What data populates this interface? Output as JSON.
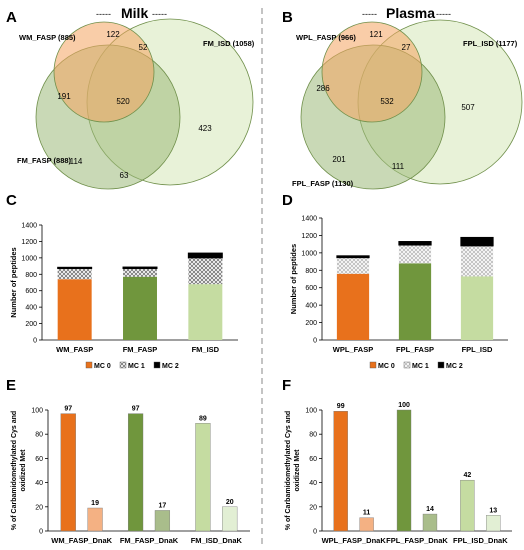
{
  "headers": {
    "left": "Milk",
    "right": "Plasma",
    "dash": "-----"
  },
  "panels": {
    "A": "A",
    "B": "B",
    "C": "C",
    "D": "D",
    "E": "E",
    "F": "F"
  },
  "colors": {
    "orange": "#e8711c",
    "orange_light": "#f4b183",
    "green": "#70963d",
    "green_light": "#a9bd8b",
    "lightgreen": "#c5dca1",
    "lightgreen_pale": "#e2efd4",
    "black": "#000000"
  },
  "chart_data": [
    {
      "type": "venn",
      "panel": "A",
      "sets": [
        {
          "name": "WM_FASP (885)",
          "color": "#f4a460"
        },
        {
          "name": "FM_ISD (1058)",
          "color": "#d6e8b8"
        },
        {
          "name": "FM_FASP (888)",
          "color": "#9cba7a"
        }
      ],
      "regions": {
        "only_1": 122,
        "1_2": 52,
        "only_2": 423,
        "1_3": 191,
        "all": 520,
        "only_3": 114,
        "2_3": 63
      }
    },
    {
      "type": "venn",
      "panel": "B",
      "sets": [
        {
          "name": "WPL_FASP (966)",
          "color": "#f4a460"
        },
        {
          "name": "FPL_ISD (1177)",
          "color": "#d6e8b8"
        },
        {
          "name": "FPL_FASP (1130)",
          "color": "#9cba7a"
        }
      ],
      "regions": {
        "only_1": 121,
        "1_2": 27,
        "only_2": 507,
        "1_3": 286,
        "all": 532,
        "only_3": 201,
        "2_3": 111
      }
    },
    {
      "type": "bar",
      "panel": "C",
      "stacked": true,
      "categories": [
        "WM_FASP",
        "FM_FASP",
        "FM_ISD"
      ],
      "series": [
        {
          "name": "MC 0",
          "values": [
            740,
            770,
            680
          ]
        },
        {
          "name": "MC 1",
          "values": [
            130,
            100,
            320
          ]
        },
        {
          "name": "MC 2",
          "values": [
            15,
            18,
            58
          ]
        }
      ],
      "ylabel": "Number of peptides",
      "ylim": [
        0,
        1400
      ],
      "yticks": [
        0,
        200,
        400,
        600,
        800,
        1000,
        1200,
        1400
      ],
      "legend": "bottom"
    },
    {
      "type": "bar",
      "panel": "D",
      "stacked": true,
      "categories": [
        "WPL_FASP",
        "FPL_FASP",
        "FPL_ISD"
      ],
      "series": [
        {
          "name": "MC 0",
          "values": [
            760,
            880,
            730
          ]
        },
        {
          "name": "MC 1",
          "values": [
            185,
            210,
            350
          ]
        },
        {
          "name": "MC 2",
          "values": [
            21,
            40,
            97
          ]
        }
      ],
      "ylabel": "Number of peptides",
      "ylim": [
        0,
        1400
      ],
      "yticks": [
        0,
        200,
        400,
        600,
        800,
        1000,
        1200,
        1400
      ],
      "legend": "bottom"
    },
    {
      "type": "bar",
      "panel": "E",
      "categories": [
        "WM_FASP_DnaK",
        "FM_FASP_DnaK",
        "FM_ISD_DnaK"
      ],
      "series": [
        {
          "name": "Carbamidomethylated Cys",
          "values": [
            97,
            97,
            89
          ]
        },
        {
          "name": "oxidized Met",
          "values": [
            19,
            17,
            20
          ]
        }
      ],
      "ylabel": "% of Carbamidomethylated Cys and oxidized Met",
      "ylim": [
        0,
        100
      ],
      "yticks": [
        0,
        20,
        40,
        60,
        80,
        100
      ]
    },
    {
      "type": "bar",
      "panel": "F",
      "categories": [
        "WPL_FASP_DnaK",
        "FPL_FASP_DnaK",
        "FPL_ISD_DnaK"
      ],
      "series": [
        {
          "name": "Carbamidomethylated Cys",
          "values": [
            99,
            100,
            42
          ]
        },
        {
          "name": "oxidized Met",
          "values": [
            11,
            14,
            13
          ]
        }
      ],
      "ylabel": "% of Carbamidomethylated Cys and oxidized Met",
      "ylim": [
        0,
        100
      ],
      "yticks": [
        0,
        20,
        40,
        60,
        80,
        100
      ]
    }
  ]
}
